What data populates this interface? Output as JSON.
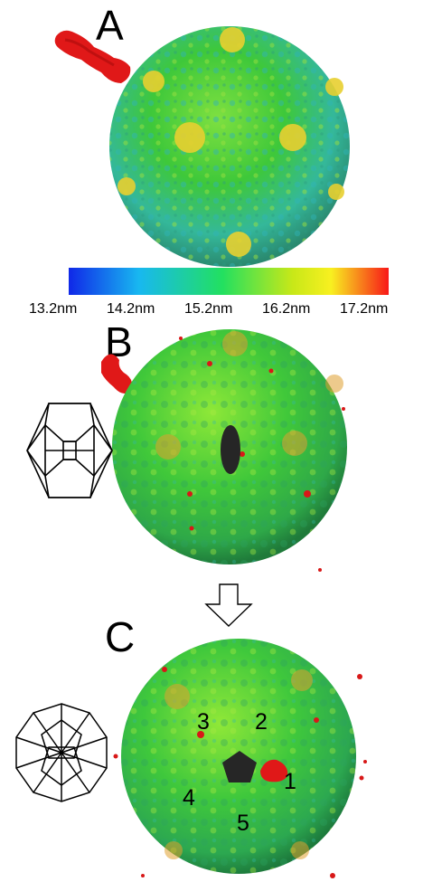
{
  "panels": {
    "a": {
      "letter": "A"
    },
    "b": {
      "letter": "B"
    },
    "c": {
      "letter": "C"
    }
  },
  "colorbar": {
    "ticks": [
      "13.2nm",
      "14.2nm",
      "15.2nm",
      "16.2nm",
      "17.2nm"
    ],
    "colors": [
      "#1028e8",
      "#18b8f0",
      "#22e060",
      "#c8e818",
      "#f8f020",
      "#f81818"
    ]
  },
  "vertex_labels": [
    "1",
    "2",
    "3",
    "4",
    "5"
  ],
  "colors": {
    "capsid_green": "#3ec83a",
    "capsid_cyan": "#35c8c8",
    "capsid_yellow": "#e8d030",
    "tail_red": "#e01818",
    "symbol_dark": "#262626"
  }
}
